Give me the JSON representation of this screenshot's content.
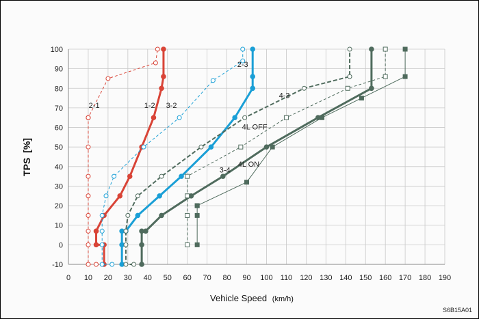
{
  "figure_code": "S6B15A01",
  "chart_data": {
    "type": "line",
    "xlabel": "Vehicle Speed",
    "xunit": "(km/h)",
    "ylabel": "TPS",
    "yunit": "[%]",
    "xlim": [
      0,
      190
    ],
    "ylim": [
      -10,
      100
    ],
    "xticks": [
      0,
      10,
      20,
      30,
      40,
      50,
      60,
      70,
      80,
      90,
      100,
      110,
      120,
      130,
      140,
      150,
      160,
      170,
      180,
      190
    ],
    "yticks": [
      -10,
      0,
      10,
      20,
      30,
      40,
      50,
      60,
      70,
      80,
      90,
      100
    ],
    "grid": true,
    "colors": {
      "red": "#d94437",
      "blue": "#1a9fd6",
      "green": "#4f6b5d"
    },
    "series": [
      {
        "name": "1-2",
        "color": "#d94437",
        "style": "solid",
        "width": 3,
        "marker": "filled",
        "x": [
          18,
          18,
          14,
          14,
          18,
          26,
          31,
          37,
          43,
          47,
          48,
          48
        ],
        "y": [
          -10,
          0,
          0,
          7,
          15,
          25,
          35,
          50,
          65,
          80,
          86,
          100
        ]
      },
      {
        "name": "2-1",
        "color": "#d94437",
        "style": "dashed",
        "width": 1,
        "marker": "open",
        "x": [
          14,
          10,
          10,
          10,
          10,
          10,
          10,
          10,
          10,
          10,
          10,
          20,
          44,
          45
        ],
        "y": [
          -10,
          -10,
          0,
          7,
          15,
          25,
          35,
          50,
          65,
          65,
          65,
          85,
          93,
          100
        ]
      },
      {
        "name": "2-3",
        "color": "#1a9fd6",
        "style": "solid",
        "width": 3,
        "marker": "filled",
        "x": [
          27,
          27,
          27,
          29,
          35,
          46,
          57,
          72,
          84,
          93,
          93,
          93
        ],
        "y": [
          -10,
          0,
          7,
          7,
          15,
          25,
          35,
          50,
          65,
          80,
          86,
          100
        ]
      },
      {
        "name": "3-2",
        "color": "#1a9fd6",
        "style": "dashed",
        "width": 1,
        "marker": "open",
        "x": [
          22,
          17,
          17,
          17,
          17,
          19,
          23,
          38,
          56,
          73,
          88,
          88
        ],
        "y": [
          -10,
          -10,
          0,
          7,
          15,
          25,
          35,
          50,
          65,
          84,
          94,
          100
        ]
      },
      {
        "name": "3-4",
        "color": "#4f6b5d",
        "style": "solid",
        "width": 3,
        "marker": "filled",
        "x": [
          37,
          37,
          37,
          39,
          47,
          62,
          78,
          100,
          126,
          153,
          153
        ],
        "y": [
          -10,
          0,
          7,
          7,
          15,
          25,
          35,
          50,
          65,
          80,
          100
        ]
      },
      {
        "name": "4-3",
        "color": "#4f6b5d",
        "style": "dashed",
        "width": 2,
        "marker": "open",
        "x": [
          33,
          29,
          29,
          29,
          30,
          35,
          47,
          67,
          89,
          119,
          142,
          142
        ],
        "y": [
          -10,
          -10,
          0,
          7,
          15,
          25,
          35,
          50,
          65,
          80,
          86,
          100
        ]
      },
      {
        "name": "4L ON",
        "color": "#4f6b5d",
        "style": "solid",
        "width": 1,
        "marker": "filled-square",
        "x": [
          65,
          65,
          65,
          65,
          90,
          103,
          128,
          148,
          170,
          170
        ],
        "y": [
          0,
          15,
          20,
          20,
          32,
          50,
          65,
          75,
          86,
          100
        ]
      },
      {
        "name": "4L OFF",
        "color": "#4f6b5d",
        "style": "dashed",
        "width": 1,
        "marker": "open-square",
        "x": [
          60,
          60,
          60,
          60,
          87,
          110,
          141,
          160,
          160
        ],
        "y": [
          0,
          15,
          25,
          35,
          50,
          65,
          80,
          86,
          100
        ]
      }
    ],
    "annotations": [
      {
        "text": "2-1",
        "x": 13,
        "y": 70
      },
      {
        "text": "1-2",
        "x": 41,
        "y": 70
      },
      {
        "text": "3-2",
        "x": 52,
        "y": 70
      },
      {
        "text": "2-3",
        "x": 88,
        "y": 91
      },
      {
        "text": "4-3",
        "x": 109,
        "y": 75
      },
      {
        "text": "4L OFF",
        "x": 94,
        "y": 59
      },
      {
        "text": "3-4",
        "x": 79,
        "y": 37
      },
      {
        "text": "4L ON",
        "x": 91,
        "y": 40
      }
    ]
  }
}
